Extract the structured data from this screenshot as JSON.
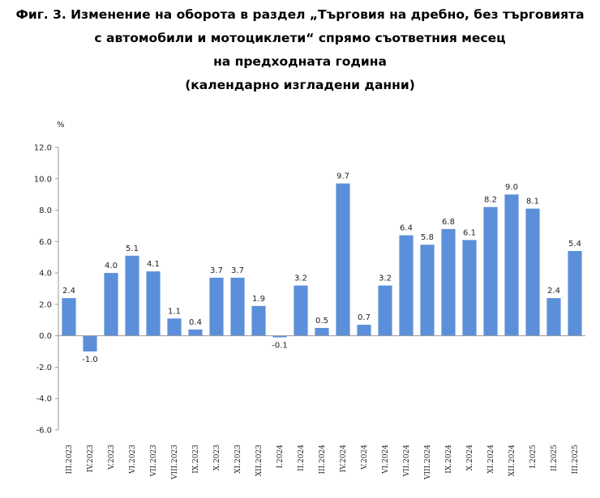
{
  "chart_data": {
    "type": "bar",
    "title_lines": [
      "Фиг. 3. Изменение на оборота в раздел „Търговия на дребно, без търговията",
      "с автомобили и мотоциклети“ спрямо съответния месец",
      "на предходната година",
      "(календарно изгладени данни)"
    ],
    "ylabel": "%",
    "xlabel": "",
    "ylim": [
      -6.0,
      12.0
    ],
    "yticks": [
      "12.0",
      "10.0",
      "8.0",
      "6.0",
      "4.0",
      "2.0",
      "0.0",
      "-2.0",
      "-4.0",
      "-6.0"
    ],
    "ytick_values": [
      12,
      10,
      8,
      6,
      4,
      2,
      0,
      -2,
      -4,
      -6
    ],
    "categories": [
      "III.2023",
      "IV.2023",
      "V.2023",
      "VI.2023",
      "VII.2023",
      "VIII.2023",
      "IX.2023",
      "X.2023",
      "XI.2023",
      "XII.2023",
      "I.2024",
      "II.2024",
      "III.2024",
      "IV.2024",
      "V.2024",
      "VI.2024",
      "VII.2024",
      "VIII.2024",
      "IX.2024",
      "X.2024",
      "XI.2024",
      "XII.2024",
      "I.2025",
      "II.2025",
      "III.2025"
    ],
    "values": [
      2.4,
      -1.0,
      4.0,
      5.1,
      4.1,
      1.1,
      0.4,
      3.7,
      3.7,
      1.9,
      -0.1,
      3.2,
      0.5,
      9.7,
      0.7,
      3.2,
      6.4,
      5.8,
      6.8,
      6.1,
      8.2,
      9.0,
      8.1,
      2.4,
      5.4
    ],
    "value_labels": [
      "2.4",
      "-1.0",
      "4.0",
      "5.1",
      "4.1",
      "1.1",
      "0.4",
      "3.7",
      "3.7",
      "1.9",
      "-0.1",
      "3.2",
      "0.5",
      "9.7",
      "0.7",
      "3.2",
      "6.4",
      "5.8",
      "6.8",
      "6.1",
      "8.2",
      "9.0",
      "8.1",
      "2.4",
      "5.4"
    ],
    "grid": false,
    "legend": "none",
    "colors": {
      "bar": "#5b8fd9",
      "axis": "#9a9a9a",
      "text": "#222222"
    }
  }
}
